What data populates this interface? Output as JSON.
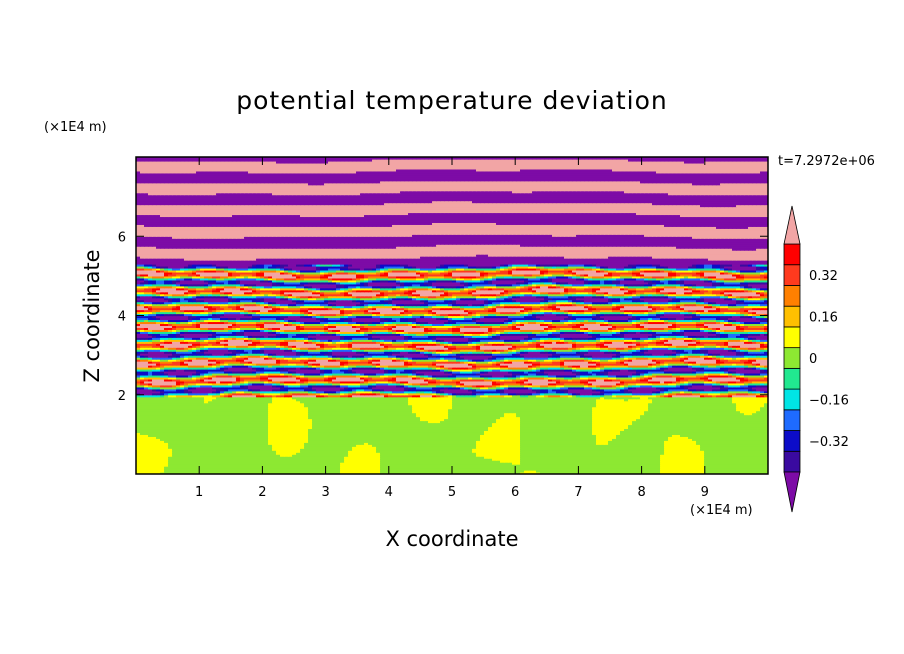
{
  "title": "potential temperature deviation",
  "timestamp": "t=7.2972e+06",
  "y_unit": "(×1E4 m)",
  "x_unit": "(×1E4 m)",
  "chart_data": {
    "type": "heatmap",
    "title": "potential temperature deviation",
    "xlabel": "X coordinate",
    "ylabel": "Z coordinate",
    "xlim": [
      0,
      10
    ],
    "ylim": [
      0,
      8
    ],
    "x_ticks": [
      1,
      2,
      3,
      4,
      5,
      6,
      7,
      8,
      9
    ],
    "y_ticks": [
      2,
      4,
      6
    ],
    "colorbar": {
      "levels": [
        -0.48,
        -0.4,
        -0.32,
        -0.24,
        -0.16,
        -0.08,
        0,
        0.08,
        0.16,
        0.24,
        0.32,
        0.4,
        0.48
      ],
      "labels": [
        "0.32",
        "0.16",
        "0",
        "−0.16",
        "−0.32"
      ],
      "label_values": [
        0.32,
        0.16,
        0,
        -0.16,
        -0.32
      ],
      "colors": [
        "#7d0ba6",
        "#3a0aa0",
        "#0c0cc8",
        "#1e6bff",
        "#00e5e5",
        "#21e890",
        "#8de832",
        "#ffff00",
        "#ffc000",
        "#ff8000",
        "#ff3a1e",
        "#ff0000",
        "#f2a5a5"
      ],
      "extend": "both"
    },
    "layers": [
      {
        "z_range": [
          0,
          1.95
        ],
        "description_colors": [
          "#21e890",
          "#8de832"
        ]
      },
      {
        "z_range": [
          1.95,
          5.3
        ],
        "description_colors": [
          "#0c0cc8",
          "#1e6bff",
          "#00e5e5",
          "#21e890",
          "#8de832",
          "#ffff00",
          "#ff8000",
          "#ff0000",
          "#f2a5a5"
        ]
      },
      {
        "z_range": [
          5.3,
          8.0
        ],
        "description_colors": [
          "#7d0ba6",
          "#f2a5a5"
        ]
      }
    ]
  }
}
